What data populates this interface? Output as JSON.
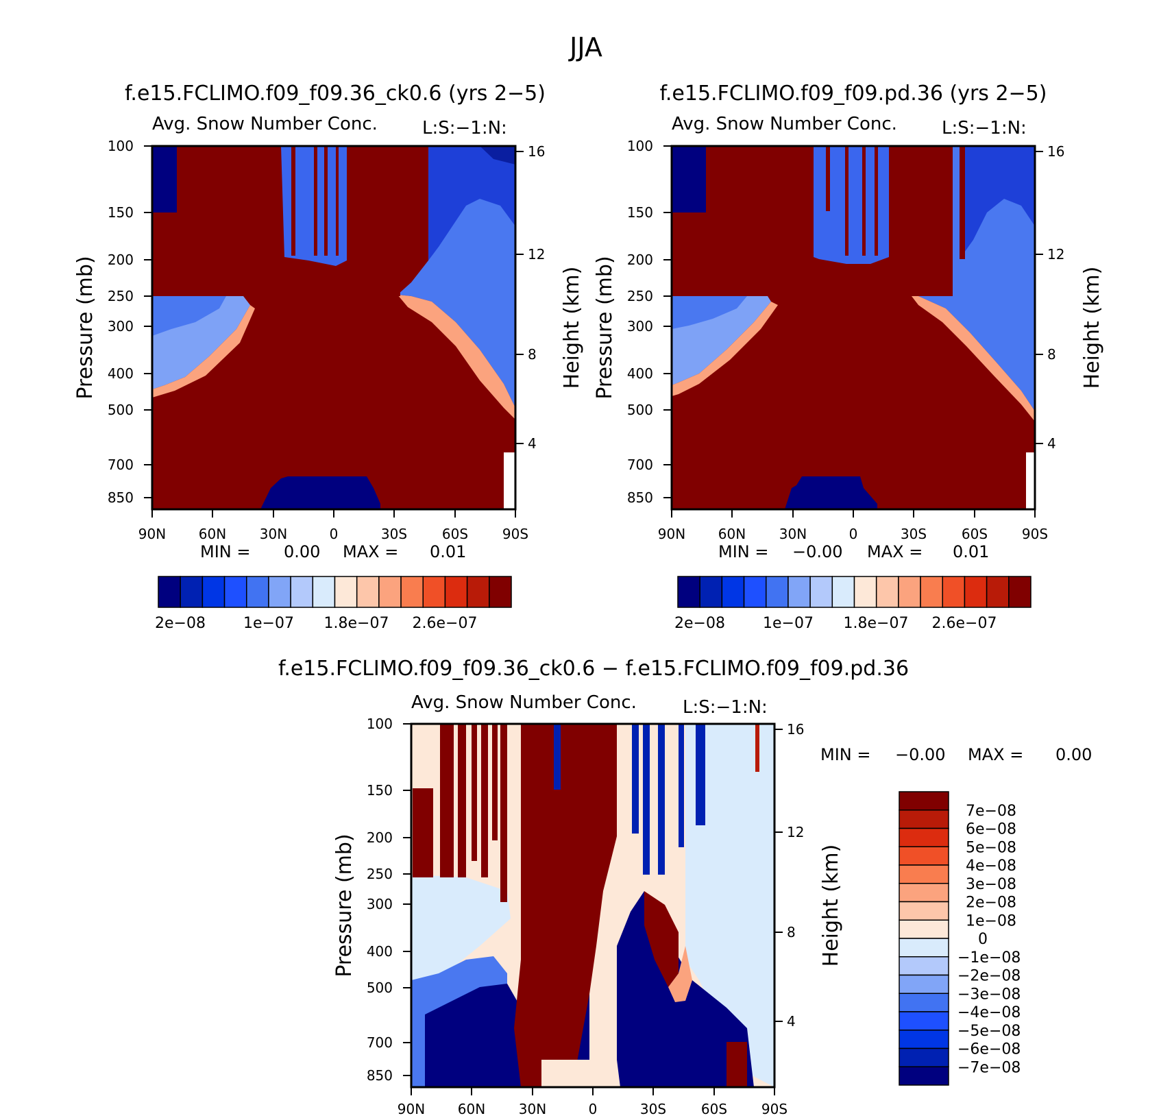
{
  "figure": {
    "season_title": "JJA"
  },
  "chart_data": [
    {
      "id": "panel_case1",
      "type": "heatmap",
      "title": "f.e15.FCLIMO.f09_f09.36_ck0.6 (yrs 2−5)",
      "subtitle": "Avg. Snow Number Conc.",
      "subtitle_right": "L:S:−1:N:",
      "xlabel": "",
      "ylabel": "Pressure (mb)",
      "ylabel_right": "Height (km)",
      "x_ticks": [
        "90N",
        "60N",
        "30N",
        "0",
        "30S",
        "60S",
        "90S"
      ],
      "y_ticks": [
        "100",
        "150",
        "200",
        "250",
        "300",
        "400",
        "500",
        "700",
        "850"
      ],
      "y_ticks_right": [
        "16",
        "12",
        "8",
        "4"
      ],
      "min_label": "MIN =",
      "min_value": "0.00",
      "max_label": "MAX =",
      "max_value": "0.01",
      "colorbar_labels": [
        "2e−08",
        "1e−07",
        "1.8e−07",
        "2.6e−07"
      ]
    },
    {
      "id": "panel_case2",
      "type": "heatmap",
      "title": "f.e15.FCLIMO.f09_f09.pd.36 (yrs 2−5)",
      "subtitle": "Avg. Snow Number Conc.",
      "subtitle_right": "L:S:−1:N:",
      "xlabel": "",
      "ylabel": "Pressure (mb)",
      "ylabel_right": "Height (km)",
      "x_ticks": [
        "90N",
        "60N",
        "30N",
        "0",
        "30S",
        "60S",
        "90S"
      ],
      "y_ticks": [
        "100",
        "150",
        "200",
        "250",
        "300",
        "400",
        "500",
        "700",
        "850"
      ],
      "y_ticks_right": [
        "16",
        "12",
        "8",
        "4"
      ],
      "min_label": "MIN =",
      "min_value": "−0.00",
      "max_label": "MAX =",
      "max_value": "0.01",
      "colorbar_labels": [
        "2e−08",
        "1e−07",
        "1.8e−07",
        "2.6e−07"
      ]
    },
    {
      "id": "panel_diff",
      "type": "heatmap",
      "title": "f.e15.FCLIMO.f09_f09.36_ck0.6 − f.e15.FCLIMO.f09_f09.pd.36",
      "subtitle": "Avg. Snow Number Conc.",
      "subtitle_right": "L:S:−1:N:",
      "xlabel": "",
      "ylabel": "Pressure (mb)",
      "ylabel_right": "Height (km)",
      "x_ticks": [
        "90N",
        "60N",
        "30N",
        "0",
        "30S",
        "60S",
        "90S"
      ],
      "y_ticks": [
        "100",
        "150",
        "200",
        "250",
        "300",
        "400",
        "500",
        "700",
        "850"
      ],
      "y_ticks_right": [
        "16",
        "12",
        "8",
        "4"
      ],
      "min_label": "MIN =",
      "min_value": "−0.00",
      "max_label": "MAX =",
      "max_value": "0.00",
      "colorbar_labels": [
        "7e−08",
        "6e−08",
        "5e−08",
        "4e−08",
        "3e−08",
        "2e−08",
        "1e−08",
        "0",
        "−1e−08",
        "−2e−08",
        "−3e−08",
        "−4e−08",
        "−5e−08",
        "−6e−08",
        "−7e−08"
      ]
    }
  ],
  "colors": {
    "sequential": [
      "#00007f",
      "#0021b2",
      "#0036e5",
      "#1e50ff",
      "#4173f2",
      "#81a5f7",
      "#b3c9fb",
      "#d9ebfc",
      "#fde8d8",
      "#fdc6aa",
      "#fba37e",
      "#f97d4f",
      "#f05027",
      "#dc2c0f",
      "#b81b08",
      "#800000"
    ],
    "diverging": [
      "#800000",
      "#b81b08",
      "#dc2c0f",
      "#f05027",
      "#f97d4f",
      "#fba37e",
      "#fdc6aa",
      "#fde8d8",
      "#d9ebfc",
      "#b3c9fb",
      "#81a5f7",
      "#4173f2",
      "#1e50ff",
      "#0036e5",
      "#0021b2",
      "#00007f"
    ]
  }
}
